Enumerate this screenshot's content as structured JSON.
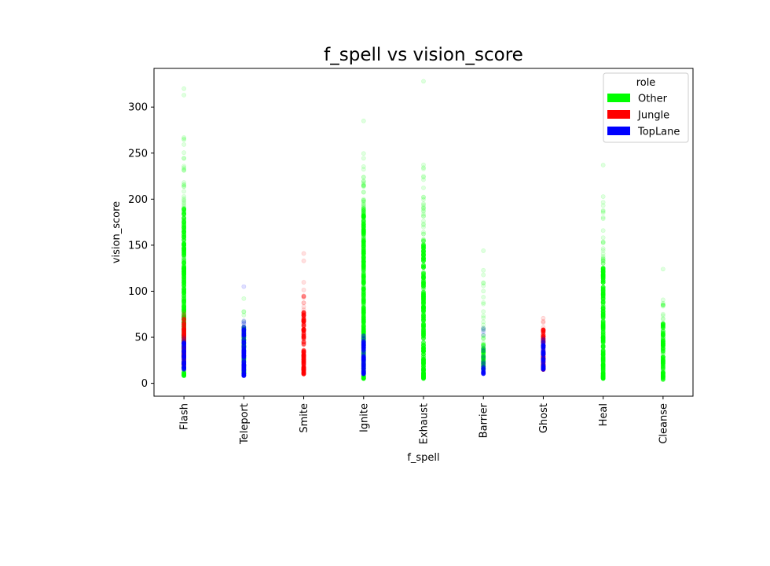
{
  "chart_data": {
    "type": "scatter",
    "title": "f_spell vs vision_score",
    "xlabel": "f_spell",
    "ylabel": "vision_score",
    "ylim": [
      -14,
      342
    ],
    "yticks": [
      0,
      50,
      100,
      150,
      200,
      250,
      300
    ],
    "categories": [
      "Flash",
      "Teleport",
      "Smite",
      "Ignite",
      "Exhaust",
      "Barrier",
      "Ghost",
      "Heal",
      "Cleanse"
    ],
    "legend": {
      "title": "role",
      "placement": "top-right",
      "entries": [
        {
          "name": "Other",
          "color": "#00ff00"
        },
        {
          "name": "Jungle",
          "color": "#ff0000"
        },
        {
          "name": "TopLane",
          "color": "#0000ff"
        }
      ]
    },
    "series": [
      {
        "name": "Other",
        "color": "#00ff00",
        "groups": [
          {
            "category": "Flash",
            "dense_min": 8,
            "dense_max": 190,
            "sparse_max": 268,
            "outliers": [
              313,
              320
            ]
          },
          {
            "category": "Teleport",
            "dense_min": 10,
            "dense_max": 60,
            "sparse_max": 80,
            "outliers": [
              92
            ]
          },
          {
            "category": "Ignite",
            "dense_min": 5,
            "dense_max": 190,
            "sparse_max": 268,
            "outliers": [
              285
            ]
          },
          {
            "category": "Exhaust",
            "dense_min": 5,
            "dense_max": 155,
            "sparse_max": 245,
            "outliers": [
              328
            ]
          },
          {
            "category": "Barrier",
            "dense_min": 15,
            "dense_max": 40,
            "sparse_max": 128,
            "outliers": [
              144
            ]
          },
          {
            "category": "Heal",
            "dense_min": 5,
            "dense_max": 130,
            "sparse_max": 205,
            "outliers": [
              237
            ]
          },
          {
            "category": "Cleanse",
            "dense_min": 4,
            "dense_max": 65,
            "sparse_max": 95,
            "outliers": [
              124
            ]
          }
        ]
      },
      {
        "name": "Jungle",
        "color": "#ff0000",
        "groups": [
          {
            "category": "Flash",
            "dense_min": 20,
            "dense_max": 70,
            "sparse_max": 80,
            "outliers": []
          },
          {
            "category": "Smite",
            "dense_min": 10,
            "dense_max": 78,
            "sparse_max": 110,
            "outliers": [
              133,
              141
            ]
          },
          {
            "category": "Ghost",
            "dense_min": 15,
            "dense_max": 60,
            "sparse_max": 72,
            "outliers": []
          }
        ]
      },
      {
        "name": "TopLane",
        "color": "#0000ff",
        "groups": [
          {
            "category": "Flash",
            "dense_min": 15,
            "dense_max": 45,
            "sparse_max": 50,
            "outliers": []
          },
          {
            "category": "Teleport",
            "dense_min": 8,
            "dense_max": 62,
            "sparse_max": 70,
            "outliers": [
              105
            ]
          },
          {
            "category": "Ignite",
            "dense_min": 10,
            "dense_max": 50,
            "sparse_max": 55,
            "outliers": []
          },
          {
            "category": "Barrier",
            "dense_min": 10,
            "dense_max": 18,
            "sparse_max": 60,
            "outliers": []
          },
          {
            "category": "Ghost",
            "dense_min": 15,
            "dense_max": 45,
            "sparse_max": 50,
            "outliers": []
          }
        ]
      }
    ]
  }
}
